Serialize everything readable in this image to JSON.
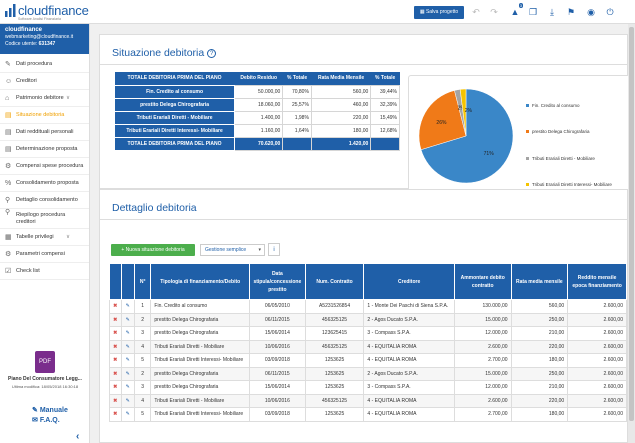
{
  "app": {
    "logo_name": "cloudfinance",
    "logo_sub": "Software Analisi Finanziaria",
    "save_label": "Salva progetto",
    "notif_count": "3"
  },
  "user": {
    "name": "cloudfinance",
    "email": "webmarketing@cloudfinance.it",
    "code_label": "Codice utente:",
    "code": "631347"
  },
  "nav": [
    {
      "label": "Dati procedura",
      "icon": "pencil-icon"
    },
    {
      "label": "Creditori",
      "icon": "user-icon"
    },
    {
      "label": "Patrimonio debitore",
      "icon": "building-icon",
      "arrow": "∨"
    },
    {
      "label": "Situazione debitoria",
      "icon": "doc-icon",
      "active": true
    },
    {
      "label": "Dati reddituali personali",
      "icon": "doc-icon"
    },
    {
      "label": "Determinazione proposta",
      "icon": "doc-icon"
    },
    {
      "label": "Compensi spese procedura",
      "icon": "gear-icon"
    },
    {
      "label": "Consolidamento proposta",
      "icon": "percent-icon"
    },
    {
      "label": "Dettaglio consolidamento",
      "icon": "search-icon"
    },
    {
      "label": "Riepilogo procedura",
      "label2": "creditori",
      "icon": "search-icon"
    },
    {
      "label": "Tabelle privilegi",
      "icon": "grid-icon",
      "arrow": "∨"
    },
    {
      "label": "Parametri compensi",
      "icon": "gear-icon"
    },
    {
      "label": "Check list",
      "icon": "check-icon"
    }
  ],
  "pdf": {
    "title": "Piano Del Consumatore Legg...",
    "subtitle": "Ultima modifica: 18/05/2018 16:30:18"
  },
  "help": {
    "manual": "Manuale",
    "faq": "F.A.Q."
  },
  "situazione": {
    "title": "Situazione debitoria",
    "headers": [
      "TOTALE DEBITORIA PRIMA DEL PIANO",
      "Debito Residuo",
      "% Totale",
      "Rata Media Mensile",
      "% Totale"
    ],
    "rows": [
      [
        "Fin. Credito al consumo",
        "50.000,00",
        "70,80%",
        "560,00",
        "39,44%"
      ],
      [
        "prestito Delega Chirografaria",
        "18.060,00",
        "25,57%",
        "460,00",
        "32,39%"
      ],
      [
        "Tributi Erariali Diretti - Mobiliare",
        "1.400,00",
        "1,98%",
        "220,00",
        "15,49%"
      ],
      [
        "Tributi Erariali Diretti Interessi- Mobiliare",
        "1.160,00",
        "1,64%",
        "180,00",
        "12,68%"
      ]
    ],
    "total": [
      "TOTALE DEBITORIA PRIMA DEL PIANO",
      "70.620,00",
      "",
      "1.420,00",
      ""
    ]
  },
  "chart_data": {
    "type": "pie",
    "categories": [
      "Fin. Credito al consumo",
      "prestito Delega Chirografaria",
      "Tributi Erariali Diretti - Mobiliare",
      "Tributi Erariali Diretti Interessi- Mobiliare"
    ],
    "values": [
      71,
      26,
      2,
      2
    ],
    "slice_labels": [
      "71%",
      "26%",
      "2%",
      "2%"
    ],
    "colors": [
      "#3a87c8",
      "#f07a18",
      "#a4a4a4",
      "#f5c400"
    ],
    "legend_position": "right"
  },
  "dettaglio": {
    "title": "Dettaglio debitoria",
    "new_btn": "+ Nuova situazione debitoria",
    "select": "Gestione semplice",
    "headers": [
      "N°",
      "Tipologia di finanziamento/Debito",
      "Data stipula/concessione prestito",
      "Num. Contratto",
      "Creditore",
      "Ammontare debito contratto",
      "Rata media mensile",
      "Reddito mensile epoca finanziamento"
    ],
    "rows": [
      [
        "1",
        "Fin. Credito al consumo",
        "06/05/2010",
        "A5231526854",
        "1 - Monte Dei Paschi di Siena S.P.A.",
        "130.000,00",
        "560,00",
        "2.600,00"
      ],
      [
        "2",
        "prestito Delega Chirografaria",
        "06/11/2015",
        "456325125",
        "2 - Agos Ducato S.P.A.",
        "15.000,00",
        "250,00",
        "2.600,00"
      ],
      [
        "3",
        "prestito Delega Chirografaria",
        "15/06/2014",
        "123625415",
        "3 - Compass S.P.A.",
        "12.000,00",
        "210,00",
        "2.600,00"
      ],
      [
        "4",
        "Tributi Erariali Diretti - Mobiliare",
        "10/06/2016",
        "456325125",
        "4 - EQUITALIA ROMA",
        "2.600,00",
        "220,00",
        "2.600,00"
      ],
      [
        "5",
        "Tributi Erariali Diretti Interessi- Mobiliare",
        "03/09/2018",
        "1253625",
        "4 - EQUITALIA ROMA",
        "2.700,00",
        "180,00",
        "2.600,00"
      ],
      [
        "2",
        "prestito Delega Chirografaria",
        "06/11/2015",
        "1253625",
        "2 - Agos Ducato S.P.A.",
        "15.000,00",
        "250,00",
        "2.600,00"
      ],
      [
        "3",
        "prestito Delega Chirografaria",
        "15/06/2014",
        "1253625",
        "3 - Compass S.P.A.",
        "12.000,00",
        "210,00",
        "2.600,00"
      ],
      [
        "4",
        "Tributi Erariali Diretti - Mobiliare",
        "10/06/2016",
        "456325125",
        "4 - EQUITALIA ROMA",
        "2.600,00",
        "220,00",
        "2.600,00"
      ],
      [
        "5",
        "Tributi Erariali Diretti Interessi- Mobiliare",
        "03/09/2018",
        "1253625",
        "4 - EQUITALIA ROMA",
        "2.700,00",
        "180,00",
        "2.600,00"
      ]
    ]
  }
}
